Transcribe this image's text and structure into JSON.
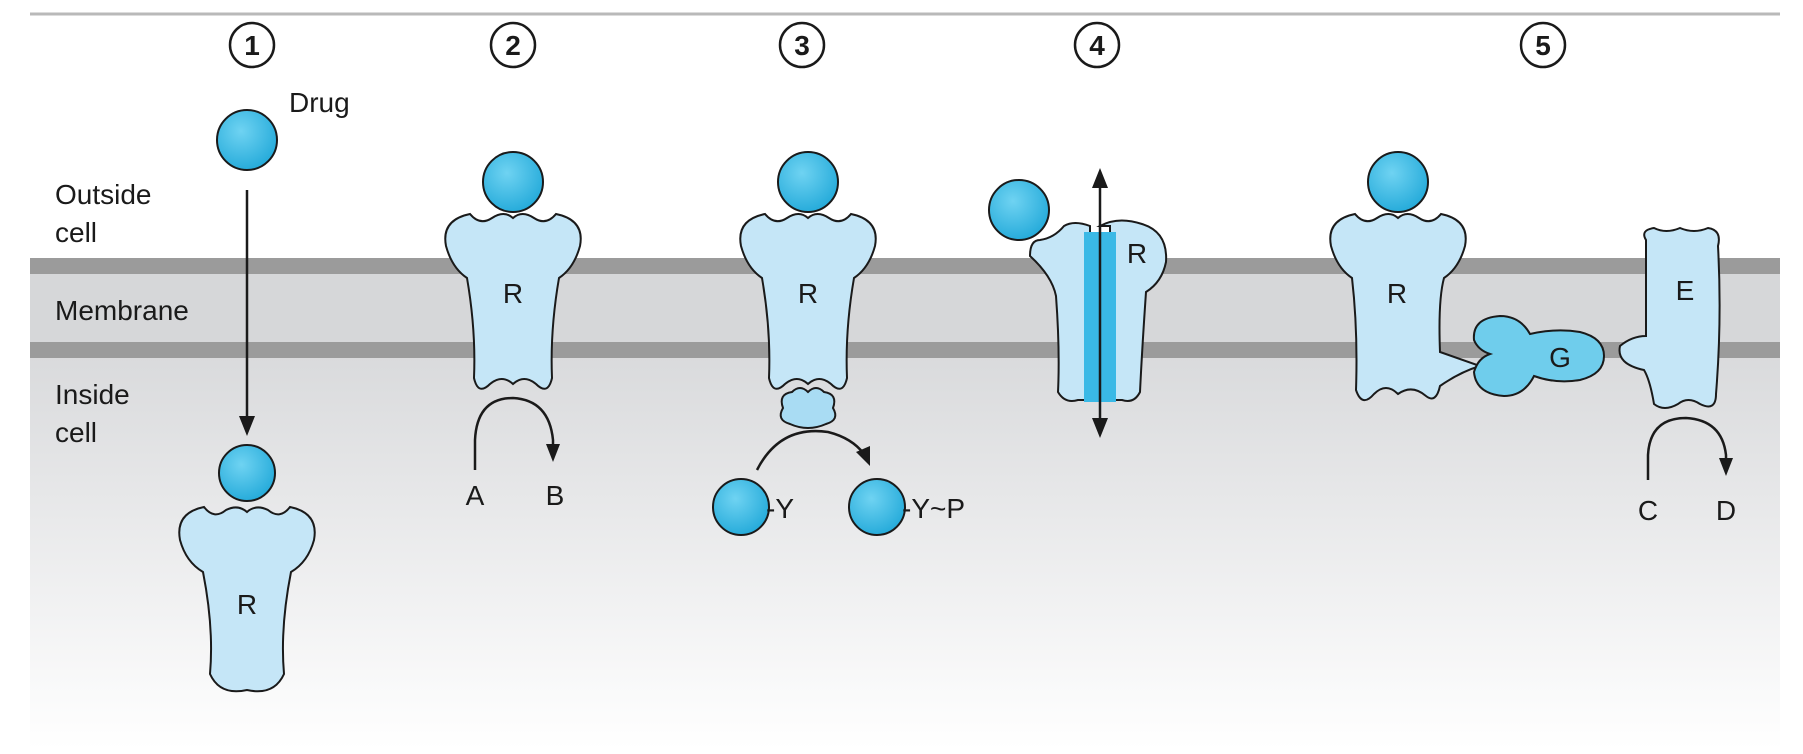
{
  "steps": [
    "1",
    "2",
    "3",
    "4",
    "5"
  ],
  "regions": {
    "outside_line1": "Outside",
    "outside_line2": "cell",
    "membrane": "Membrane",
    "inside_line1": "Inside",
    "inside_line2": "cell"
  },
  "labels": {
    "drug": "Drug",
    "receptor": "R",
    "a": "A",
    "b": "B",
    "y": "-Y",
    "y_p": "-Y~P",
    "g": "G",
    "e": "E",
    "c": "C",
    "d": "D"
  },
  "colors": {
    "drug_fill": "#3cbde8",
    "receptor_fill": "#c5e6f7",
    "channel_fill": "#3ab9e6",
    "membrane_band": "#9b9b9b",
    "membrane_fill": "#d6d7d9",
    "inside_fill": "#e2e3e5",
    "g_fill": "#6fcdec"
  }
}
